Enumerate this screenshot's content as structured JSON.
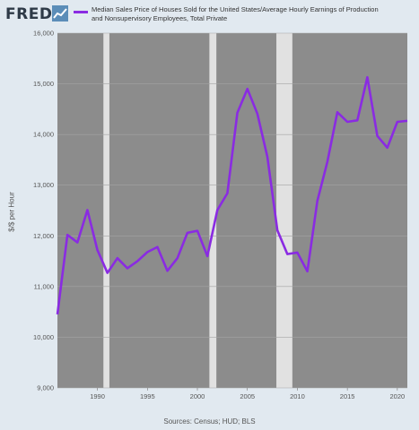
{
  "header": {
    "logo_text": "FRED",
    "logo_icon": "line-chart-icon",
    "legend_label": "Median Sales Price of Houses Sold for the United States/Average Hourly Earnings of Production and Nonsupervisory Employees, Total Private"
  },
  "footer": {
    "source": "Sources: Census; HUD; BLS"
  },
  "colors": {
    "plot_background": "#8c8c8c",
    "recession_shading": "#e1e1e1",
    "line": "#8a2be2",
    "page_background": "#e1e9f0"
  },
  "chart_data": {
    "type": "line",
    "title": "",
    "xlabel": "",
    "ylabel": "$/$ per Hour",
    "xlim": [
      1986,
      2021
    ],
    "ylim": [
      9000,
      16000
    ],
    "x_ticks": [
      1990,
      1995,
      2000,
      2005,
      2010,
      2015,
      2020
    ],
    "y_ticks": [
      9000,
      10000,
      11000,
      12000,
      13000,
      14000,
      15000,
      16000
    ],
    "y_tick_labels": [
      "9,000",
      "10,000",
      "11,000",
      "12,000",
      "13,000",
      "14,000",
      "15,000",
      "16,000"
    ],
    "grid": true,
    "legend": "top",
    "recessions": [
      [
        1990.6,
        1991.2
      ],
      [
        2001.2,
        2001.9
      ],
      [
        2007.9,
        2009.5
      ]
    ],
    "series": [
      {
        "name": "Median Sales Price of Houses Sold for the United States/Average Hourly Earnings of Production and Nonsupervisory Employees, Total Private",
        "x": [
          1986,
          1987,
          1988,
          1989,
          1990,
          1991,
          1992,
          1993,
          1994,
          1995,
          1996,
          1997,
          1998,
          1999,
          2000,
          2001,
          2002,
          2003,
          2004,
          2005,
          2006,
          2007,
          2008,
          2009,
          2010,
          2011,
          2012,
          2013,
          2014,
          2015,
          2016,
          2017,
          2018,
          2019,
          2020,
          2021
        ],
        "values": [
          10450,
          12020,
          11870,
          12510,
          11720,
          11270,
          11560,
          11360,
          11500,
          11680,
          11780,
          11310,
          11560,
          12060,
          12100,
          11600,
          12510,
          12840,
          14430,
          14900,
          14410,
          13560,
          12110,
          11640,
          11670,
          11300,
          12690,
          13460,
          14440,
          14250,
          14280,
          15130,
          13970,
          13740,
          14250,
          14270
        ]
      }
    ]
  }
}
